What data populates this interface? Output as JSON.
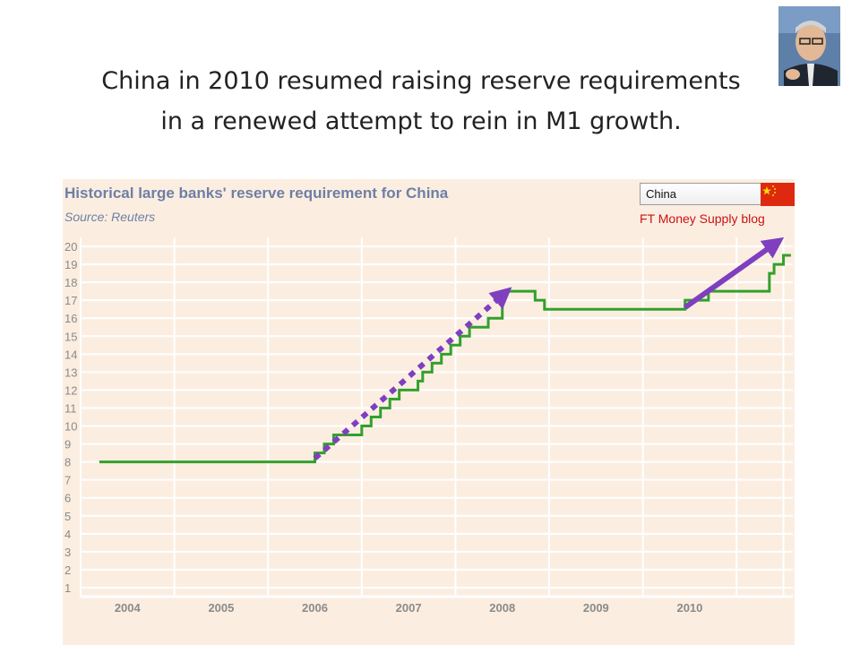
{
  "slide": {
    "title_line1": "China in 2010 resumed raising reserve requirements",
    "title_line2": "in a renewed attempt to rein in M1 growth."
  },
  "panel": {
    "country_selected": "China",
    "blog_link": "FT Money Supply blog"
  },
  "colors": {
    "series": "#33a02c",
    "arrow": "#7f3fbf",
    "panel_bg": "#fbeee1",
    "header_text": "#6e7fa5",
    "link": "#cc1111"
  },
  "chart_data": {
    "type": "line",
    "title": "Historical large banks' reserve requirement for China",
    "subtitle": "Source: Reuters",
    "xlabel": "",
    "ylabel": "",
    "xlim": [
      2003.5,
      2011.1
    ],
    "ylim": [
      0.5,
      20.5
    ],
    "x_tick_labels": [
      "2004",
      "2005",
      "2006",
      "2007",
      "2008",
      "2009",
      "2010"
    ],
    "x_tick_positions": [
      2004,
      2005,
      2006,
      2007,
      2008,
      2009,
      2010
    ],
    "y_tick_labels": [
      "1",
      "2",
      "3",
      "4",
      "5",
      "6",
      "7",
      "8",
      "9",
      "10",
      "11",
      "12",
      "13",
      "14",
      "15",
      "16",
      "17",
      "18",
      "19",
      "20"
    ],
    "grid": true,
    "step": true,
    "series": [
      {
        "color": "#33a02c",
        "x": [
          2003.7,
          2006.0,
          2006.1,
          2006.2,
          2006.3,
          2006.5,
          2006.6,
          2006.7,
          2006.8,
          2006.9,
          2007.1,
          2007.15,
          2007.25,
          2007.35,
          2007.45,
          2007.55,
          2007.65,
          2007.85,
          2008.0,
          2008.1,
          2008.15,
          2008.25,
          2008.35,
          2008.45,
          2008.55,
          2009.0,
          2009.95,
          2010.1,
          2010.2,
          2010.35,
          2010.45,
          2010.85,
          2010.9,
          2011.0
        ],
        "y": [
          8,
          8.5,
          9,
          9.5,
          9.5,
          10,
          10.5,
          11,
          11.5,
          12,
          12.5,
          13,
          13.5,
          14,
          14.5,
          15,
          15.5,
          16,
          17.5,
          17.5,
          17.5,
          17.5,
          17,
          16.5,
          16.5,
          16.5,
          17,
          17,
          17.5,
          17.5,
          17.5,
          18.5,
          19,
          19.5
        ]
      }
    ],
    "annotations": [
      {
        "type": "dotted-arrow",
        "color": "#7f3fbf",
        "from": [
          2006.0,
          8.2
        ],
        "to": [
          2008.05,
          17.5
        ]
      },
      {
        "type": "solid-arrow",
        "color": "#7f3fbf",
        "from": [
          2009.95,
          16.6
        ],
        "to": [
          2010.95,
          20.3
        ]
      }
    ]
  }
}
